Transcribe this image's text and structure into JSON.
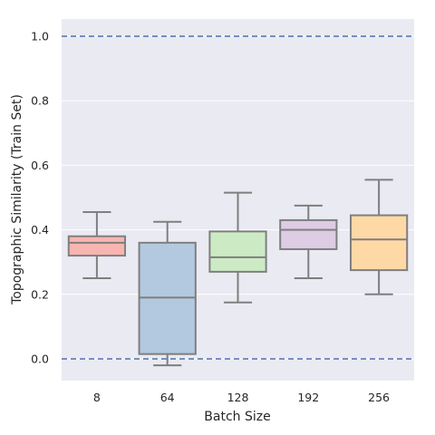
{
  "chart_data": {
    "type": "box",
    "title": "",
    "xlabel": "Batch Size",
    "ylabel": "Topographic Similarity (Train Set)",
    "ylim": [
      -0.1,
      1.08
    ],
    "yticks": [
      0.0,
      0.2,
      0.4,
      0.6,
      0.8,
      1.0
    ],
    "ytick_labels": [
      "0.0",
      "0.2",
      "0.4",
      "0.6",
      "0.8",
      "1.0"
    ],
    "grid": true,
    "reference_lines": [
      {
        "y": 1.0,
        "style": "dashed",
        "color": "#4c72b0"
      },
      {
        "y": 0.0,
        "style": "dashed",
        "color": "#4c72b0"
      }
    ],
    "categories": [
      "8",
      "64",
      "128",
      "192",
      "256"
    ],
    "boxes": [
      {
        "category": "8",
        "whisker_low": 0.25,
        "q1": 0.32,
        "median": 0.36,
        "q3": 0.38,
        "whisker_high": 0.455,
        "color": "#f8b5b0"
      },
      {
        "category": "64",
        "whisker_low": -0.02,
        "q1": 0.015,
        "median": 0.19,
        "q3": 0.36,
        "whisker_high": 0.425,
        "color": "#b3c9df"
      },
      {
        "category": "128",
        "whisker_low": 0.175,
        "q1": 0.27,
        "median": 0.315,
        "q3": 0.395,
        "whisker_high": 0.515,
        "color": "#ccebc5"
      },
      {
        "category": "192",
        "whisker_low": 0.25,
        "q1": 0.34,
        "median": 0.4,
        "q3": 0.43,
        "whisker_high": 0.475,
        "color": "#decbe4"
      },
      {
        "category": "256",
        "whisker_low": 0.2,
        "q1": 0.275,
        "median": 0.37,
        "q3": 0.445,
        "whisker_high": 0.555,
        "color": "#fed9a6"
      }
    ],
    "colors": {
      "plot_background": "#eaeaf2",
      "grid": "#ffffff",
      "box_edge": "#7f7f7f"
    }
  }
}
